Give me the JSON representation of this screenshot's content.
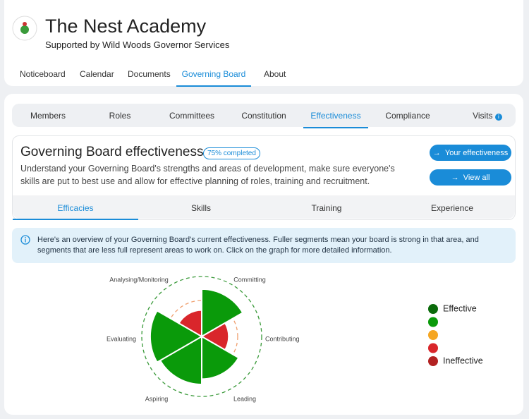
{
  "header": {
    "title": "The Nest Academy",
    "subtitle": "Supported by Wild Woods Governor Services"
  },
  "nav": [
    "Noticeboard",
    "Calendar",
    "Documents",
    "Governing Board",
    "About"
  ],
  "board_tabs": [
    "Members",
    "Roles",
    "Committees",
    "Constitution",
    "Effectiveness",
    "Compliance",
    "Visits"
  ],
  "panel": {
    "title": "Governing Board effectiveness",
    "badge": "75% completed",
    "description": "Understand your Governing Board's strengths and areas of development, make sure everyone's skills are put to best use and allow for effective planning of roles, training and recruitment.",
    "buttons": [
      "Your effectiveness",
      "View all"
    ]
  },
  "effectiveness_tabs": [
    "Efficacies",
    "Skills",
    "Training",
    "Experience"
  ],
  "info": "Here's an overview of your Governing Board's current effectiveness. Fuller segments mean your board is strong in that area, and segments that are less full represent areas to work on. Click on the graph for more detailed information.",
  "chart_data": {
    "type": "polar",
    "categories": [
      "Committing",
      "Contributing",
      "Leading",
      "Aspiring",
      "Evaluating",
      "Analysing/Monitoring"
    ],
    "values": [
      79,
      45,
      71,
      80,
      86,
      44
    ],
    "colors": [
      "#0a9a0a",
      "#d9262b",
      "#0a9a0a",
      "#0a9a0a",
      "#0a9a0a",
      "#d9262b"
    ],
    "rlim": [
      0,
      100
    ],
    "rticks": [
      60,
      100
    ],
    "legend": [
      {
        "name": "Effective",
        "color": "#0b6b0b"
      },
      {
        "name": null,
        "color": "#0a9a0a"
      },
      {
        "name": null,
        "color": "#f5a623"
      },
      {
        "name": null,
        "color": "#d9262b"
      },
      {
        "name": "Ineffective",
        "color": "#b22222"
      }
    ]
  }
}
